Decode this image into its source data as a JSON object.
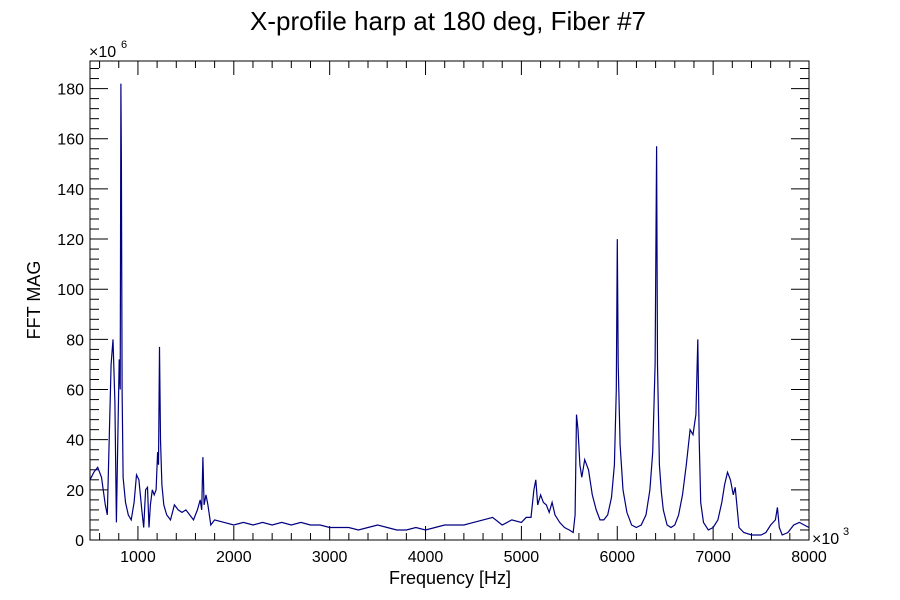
{
  "chart_data": {
    "type": "line",
    "title": "X-profile harp at 180 deg, Fiber #7",
    "xlabel": "Frequency [Hz]",
    "ylabel": "FFT MAG",
    "x_multiplier_label": "×10",
    "x_multiplier_exp": "3",
    "y_multiplier_label": "×10",
    "y_multiplier_exp": "6",
    "xlim": [
      500,
      8000
    ],
    "ylim": [
      0,
      191
    ],
    "x_ticks": [
      1000,
      2000,
      3000,
      4000,
      5000,
      6000,
      7000,
      8000
    ],
    "x_tick_labels": [
      "1000",
      "2000",
      "3000",
      "4000",
      "5000",
      "6000",
      "7000",
      "8000"
    ],
    "y_ticks": [
      0,
      20,
      40,
      60,
      80,
      100,
      120,
      140,
      160,
      180
    ],
    "y_tick_labels": [
      "0",
      "20",
      "40",
      "60",
      "80",
      "100",
      "120",
      "140",
      "160",
      "180"
    ],
    "grid": false,
    "line_color": "#000080",
    "series": [
      {
        "points": [
          [
            500,
            24
          ],
          [
            540,
            27
          ],
          [
            580,
            29
          ],
          [
            620,
            25
          ],
          [
            660,
            14
          ],
          [
            680,
            10
          ],
          [
            700,
            40
          ],
          [
            720,
            70
          ],
          [
            740,
            80
          ],
          [
            760,
            55
          ],
          [
            775,
            7
          ],
          [
            790,
            40
          ],
          [
            805,
            72
          ],
          [
            815,
            60
          ],
          [
            822,
            182
          ],
          [
            828,
            150
          ],
          [
            835,
            60
          ],
          [
            845,
            25
          ],
          [
            870,
            15
          ],
          [
            900,
            10
          ],
          [
            930,
            8
          ],
          [
            960,
            15
          ],
          [
            985,
            26
          ],
          [
            1010,
            24
          ],
          [
            1040,
            12
          ],
          [
            1060,
            5
          ],
          [
            1080,
            20
          ],
          [
            1100,
            21
          ],
          [
            1115,
            5
          ],
          [
            1130,
            14
          ],
          [
            1150,
            20
          ],
          [
            1170,
            18
          ],
          [
            1190,
            20
          ],
          [
            1205,
            35
          ],
          [
            1215,
            30
          ],
          [
            1225,
            77
          ],
          [
            1235,
            40
          ],
          [
            1250,
            22
          ],
          [
            1270,
            14
          ],
          [
            1300,
            10
          ],
          [
            1340,
            8
          ],
          [
            1380,
            14
          ],
          [
            1420,
            12
          ],
          [
            1460,
            11
          ],
          [
            1500,
            12
          ],
          [
            1540,
            10
          ],
          [
            1580,
            8
          ],
          [
            1620,
            12
          ],
          [
            1650,
            16
          ],
          [
            1665,
            12
          ],
          [
            1678,
            33
          ],
          [
            1690,
            14
          ],
          [
            1710,
            18
          ],
          [
            1730,
            14
          ],
          [
            1760,
            6
          ],
          [
            1800,
            8
          ],
          [
            1900,
            7
          ],
          [
            2000,
            6
          ],
          [
            2100,
            7
          ],
          [
            2200,
            6
          ],
          [
            2300,
            7
          ],
          [
            2400,
            6
          ],
          [
            2500,
            7
          ],
          [
            2600,
            6
          ],
          [
            2700,
            7
          ],
          [
            2800,
            6
          ],
          [
            2900,
            6
          ],
          [
            3000,
            5
          ],
          [
            3100,
            5
          ],
          [
            3200,
            5
          ],
          [
            3300,
            4
          ],
          [
            3400,
            5
          ],
          [
            3500,
            6
          ],
          [
            3600,
            5
          ],
          [
            3700,
            4
          ],
          [
            3800,
            4
          ],
          [
            3900,
            5
          ],
          [
            4000,
            4
          ],
          [
            4100,
            5
          ],
          [
            4200,
            6
          ],
          [
            4300,
            6
          ],
          [
            4400,
            6
          ],
          [
            4500,
            7
          ],
          [
            4600,
            8
          ],
          [
            4700,
            9
          ],
          [
            4800,
            6
          ],
          [
            4900,
            8
          ],
          [
            5000,
            7
          ],
          [
            5050,
            9
          ],
          [
            5100,
            9
          ],
          [
            5130,
            20
          ],
          [
            5150,
            24
          ],
          [
            5170,
            14
          ],
          [
            5200,
            18
          ],
          [
            5230,
            15
          ],
          [
            5260,
            14
          ],
          [
            5290,
            11
          ],
          [
            5320,
            15
          ],
          [
            5350,
            10
          ],
          [
            5400,
            7
          ],
          [
            5450,
            5
          ],
          [
            5500,
            4
          ],
          [
            5540,
            3
          ],
          [
            5560,
            10
          ],
          [
            5575,
            50
          ],
          [
            5590,
            44
          ],
          [
            5610,
            30
          ],
          [
            5630,
            25
          ],
          [
            5660,
            32
          ],
          [
            5700,
            28
          ],
          [
            5740,
            18
          ],
          [
            5780,
            12
          ],
          [
            5820,
            8
          ],
          [
            5860,
            8
          ],
          [
            5900,
            10
          ],
          [
            5940,
            17
          ],
          [
            5970,
            30
          ],
          [
            5990,
            60
          ],
          [
            6000,
            120
          ],
          [
            6010,
            70
          ],
          [
            6030,
            38
          ],
          [
            6060,
            20
          ],
          [
            6100,
            11
          ],
          [
            6150,
            6
          ],
          [
            6200,
            5
          ],
          [
            6250,
            6
          ],
          [
            6300,
            10
          ],
          [
            6340,
            20
          ],
          [
            6370,
            35
          ],
          [
            6395,
            70
          ],
          [
            6410,
            157
          ],
          [
            6420,
            70
          ],
          [
            6440,
            30
          ],
          [
            6460,
            19
          ],
          [
            6480,
            12
          ],
          [
            6520,
            6
          ],
          [
            6560,
            5
          ],
          [
            6600,
            6
          ],
          [
            6640,
            10
          ],
          [
            6680,
            18
          ],
          [
            6720,
            30
          ],
          [
            6760,
            44
          ],
          [
            6790,
            42
          ],
          [
            6820,
            50
          ],
          [
            6840,
            80
          ],
          [
            6855,
            40
          ],
          [
            6870,
            15
          ],
          [
            6900,
            7
          ],
          [
            6950,
            4
          ],
          [
            7000,
            5
          ],
          [
            7050,
            8
          ],
          [
            7090,
            15
          ],
          [
            7120,
            22
          ],
          [
            7150,
            27
          ],
          [
            7180,
            24
          ],
          [
            7210,
            18
          ],
          [
            7230,
            21
          ],
          [
            7250,
            13
          ],
          [
            7270,
            5
          ],
          [
            7320,
            3
          ],
          [
            7400,
            2
          ],
          [
            7500,
            2
          ],
          [
            7550,
            3
          ],
          [
            7600,
            6
          ],
          [
            7650,
            8
          ],
          [
            7670,
            13
          ],
          [
            7690,
            5
          ],
          [
            7720,
            2
          ],
          [
            7780,
            3
          ],
          [
            7840,
            6
          ],
          [
            7900,
            7
          ],
          [
            7950,
            6
          ],
          [
            8000,
            5
          ]
        ]
      }
    ]
  }
}
